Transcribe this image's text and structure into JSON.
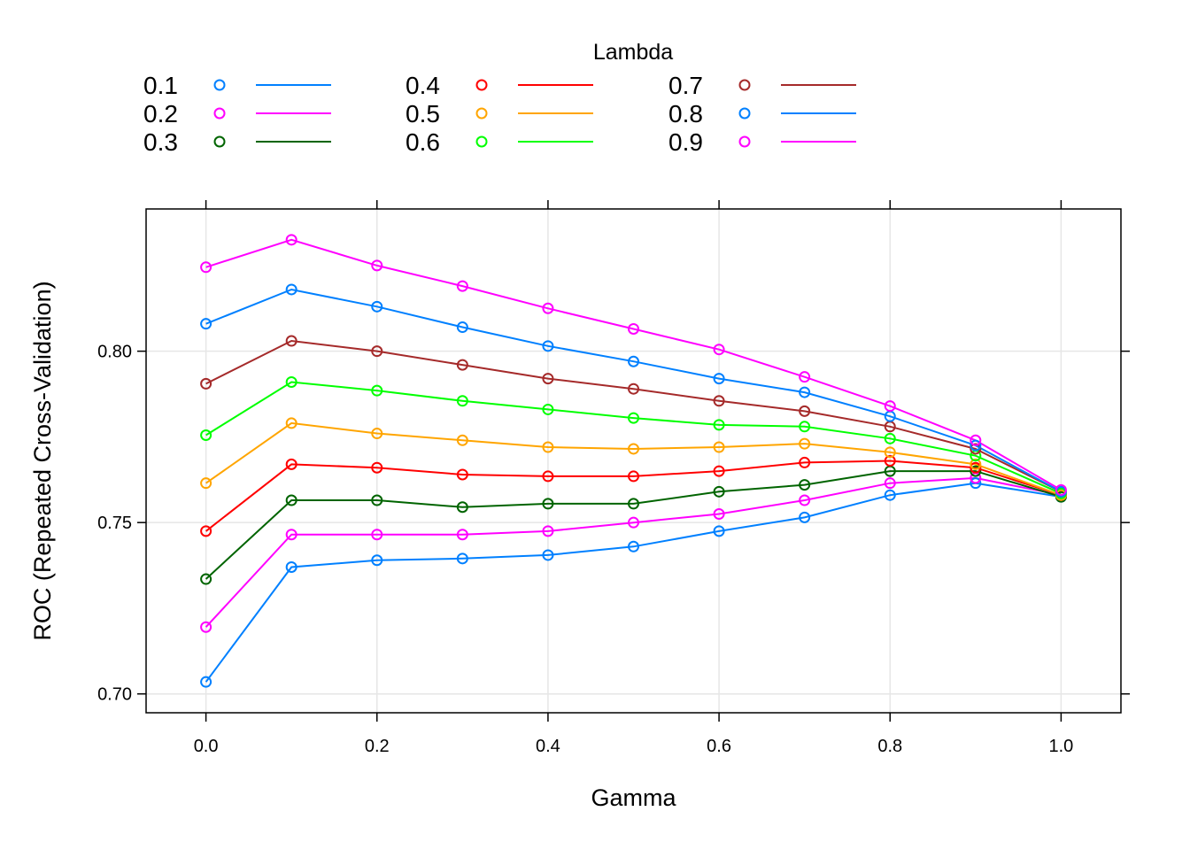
{
  "chart_data": {
    "type": "line",
    "xlabel": "Gamma",
    "ylabel": "ROC (Repeated Cross-Validation)",
    "xlim": [
      -0.07,
      1.07
    ],
    "ylim": [
      0.6945,
      0.8415
    ],
    "x_ticks": [
      "0.0",
      "0.2",
      "0.4",
      "0.6",
      "0.8",
      "1.0"
    ],
    "y_ticks": [
      "0.70",
      "0.75",
      "0.80"
    ],
    "grid": true,
    "legend": {
      "title": "Lambda",
      "placement": "top",
      "columns": 3
    },
    "x": [
      0.0,
      0.1,
      0.2,
      0.3,
      0.4,
      0.5,
      0.6,
      0.7,
      0.8,
      0.9,
      1.0
    ],
    "series": [
      {
        "name": "0.1",
        "color": "#0080ff",
        "values": [
          0.7035,
          0.737,
          0.739,
          0.7395,
          0.7405,
          0.743,
          0.7475,
          0.7515,
          0.758,
          0.7615,
          0.7575
        ]
      },
      {
        "name": "0.2",
        "color": "#ff00ff",
        "values": [
          0.7195,
          0.7465,
          0.7465,
          0.7465,
          0.7475,
          0.75,
          0.7525,
          0.7565,
          0.7615,
          0.763,
          0.758
        ]
      },
      {
        "name": "0.3",
        "color": "#006400",
        "values": [
          0.7335,
          0.7565,
          0.7565,
          0.7545,
          0.7555,
          0.7555,
          0.759,
          0.761,
          0.765,
          0.765,
          0.7575
        ]
      },
      {
        "name": "0.4",
        "color": "#ff0000",
        "values": [
          0.7475,
          0.767,
          0.766,
          0.764,
          0.7635,
          0.7635,
          0.765,
          0.7675,
          0.768,
          0.766,
          0.758
        ]
      },
      {
        "name": "0.5",
        "color": "#ffa500",
        "values": [
          0.7615,
          0.779,
          0.776,
          0.774,
          0.772,
          0.7715,
          0.772,
          0.773,
          0.7705,
          0.767,
          0.758
        ]
      },
      {
        "name": "0.6",
        "color": "#00ff00",
        "values": [
          0.7755,
          0.791,
          0.7885,
          0.7855,
          0.783,
          0.7805,
          0.7785,
          0.778,
          0.7745,
          0.7695,
          0.7585
        ]
      },
      {
        "name": "0.7",
        "color": "#a52a2a",
        "values": [
          0.7905,
          0.803,
          0.8,
          0.796,
          0.792,
          0.789,
          0.7855,
          0.7825,
          0.778,
          0.7715,
          0.759
        ]
      },
      {
        "name": "0.8",
        "color": "#0080ff",
        "values": [
          0.808,
          0.818,
          0.813,
          0.807,
          0.8015,
          0.797,
          0.792,
          0.788,
          0.781,
          0.7725,
          0.759
        ]
      },
      {
        "name": "0.9",
        "color": "#ff00ff",
        "values": [
          0.8245,
          0.8325,
          0.825,
          0.819,
          0.8125,
          0.8065,
          0.8005,
          0.7925,
          0.784,
          0.774,
          0.7595
        ]
      }
    ]
  }
}
